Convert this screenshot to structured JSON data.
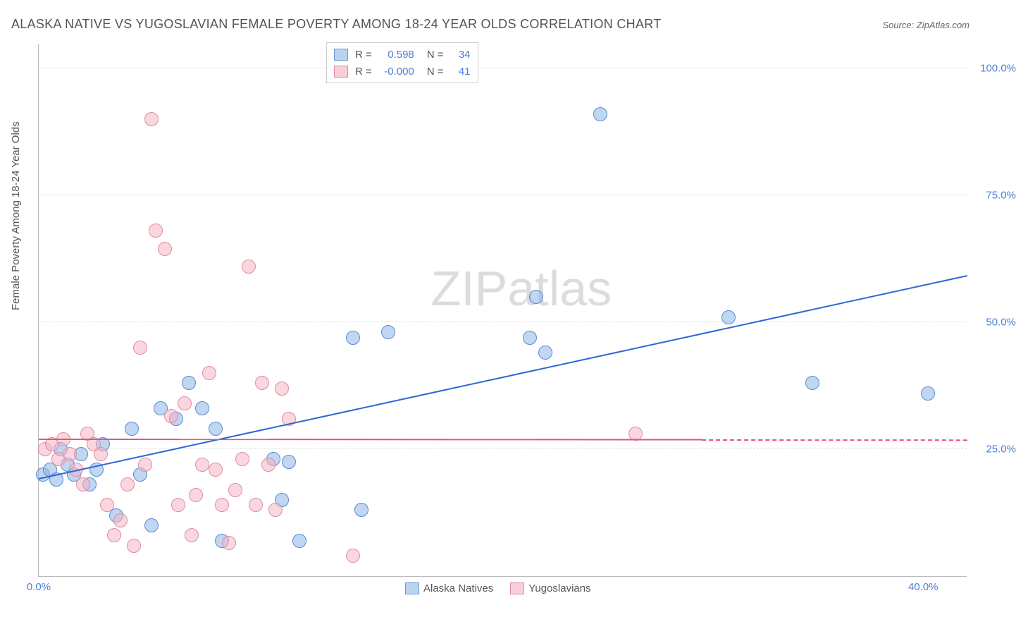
{
  "title": "ALASKA NATIVE VS YUGOSLAVIAN FEMALE POVERTY AMONG 18-24 YEAR OLDS CORRELATION CHART",
  "source_label": "Source: ZipAtlas.com",
  "y_axis_title": "Female Poverty Among 18-24 Year Olds",
  "watermark_parts": {
    "bold": "ZIP",
    "light": "atlas"
  },
  "stats": [
    {
      "r_label": "R =",
      "r_val": "0.598",
      "n_label": "N =",
      "n_val": "34",
      "color": "blue"
    },
    {
      "r_label": "R =",
      "r_val": "-0.000",
      "n_label": "N =",
      "n_val": "41",
      "color": "pink"
    }
  ],
  "legend": {
    "series_a": "Alaska Natives",
    "series_b": "Yugoslavians"
  },
  "chart": {
    "type": "scatter",
    "xlim": [
      0,
      42
    ],
    "ylim": [
      0,
      105
    ],
    "x_ticks": [
      {
        "v": 0,
        "label": "0.0%"
      },
      {
        "v": 40,
        "label": "40.0%"
      }
    ],
    "y_ticks": [
      {
        "v": 25,
        "label": "25.0%"
      },
      {
        "v": 50,
        "label": "50.0%"
      },
      {
        "v": 75,
        "label": "75.0%"
      },
      {
        "v": 100,
        "label": "100.0%"
      }
    ],
    "marker_radius": 10,
    "background_color": "#ffffff",
    "grid_color": "#dddddd",
    "series": [
      {
        "name": "Alaska Natives",
        "color": "blue",
        "fill": "rgba(140,180,230,0.55)",
        "stroke": "#5a8cd0",
        "points": [
          [
            0.2,
            20
          ],
          [
            0.5,
            21
          ],
          [
            0.8,
            19
          ],
          [
            1.0,
            25
          ],
          [
            1.3,
            22
          ],
          [
            1.6,
            20
          ],
          [
            1.9,
            24
          ],
          [
            2.3,
            18
          ],
          [
            2.6,
            21
          ],
          [
            2.9,
            26
          ],
          [
            3.5,
            12
          ],
          [
            4.2,
            29
          ],
          [
            4.6,
            20
          ],
          [
            5.1,
            10
          ],
          [
            5.5,
            33
          ],
          [
            6.2,
            31
          ],
          [
            6.8,
            38
          ],
          [
            7.4,
            33
          ],
          [
            8.0,
            29
          ],
          [
            8.3,
            7
          ],
          [
            10.6,
            23
          ],
          [
            11.0,
            15
          ],
          [
            11.3,
            22.5
          ],
          [
            11.8,
            7
          ],
          [
            14.2,
            47
          ],
          [
            14.6,
            13
          ],
          [
            15.8,
            48
          ],
          [
            22.2,
            47
          ],
          [
            22.5,
            55
          ],
          [
            22.9,
            44
          ],
          [
            25.4,
            91
          ],
          [
            31.2,
            51
          ],
          [
            35.0,
            38
          ],
          [
            40.2,
            36
          ]
        ],
        "trend": {
          "x1": 0,
          "y1": 19,
          "x2": 42,
          "y2": 59,
          "solid_until": 42,
          "color": "#2f67d1"
        }
      },
      {
        "name": "Yugoslavians",
        "color": "pink",
        "fill": "rgba(245,180,195,0.55)",
        "stroke": "#e28ba5",
        "points": [
          [
            0.3,
            25
          ],
          [
            0.6,
            26
          ],
          [
            0.9,
            23
          ],
          [
            1.1,
            27
          ],
          [
            1.4,
            24
          ],
          [
            1.7,
            21
          ],
          [
            2.0,
            18
          ],
          [
            2.2,
            28
          ],
          [
            2.5,
            26
          ],
          [
            2.8,
            24
          ],
          [
            3.1,
            14
          ],
          [
            3.4,
            8
          ],
          [
            3.7,
            11
          ],
          [
            4.0,
            18
          ],
          [
            4.3,
            6
          ],
          [
            4.6,
            45
          ],
          [
            4.8,
            22
          ],
          [
            5.1,
            90
          ],
          [
            5.3,
            68
          ],
          [
            5.7,
            64.5
          ],
          [
            6.0,
            31.5
          ],
          [
            6.3,
            14
          ],
          [
            6.6,
            34
          ],
          [
            6.9,
            8
          ],
          [
            7.1,
            16
          ],
          [
            7.4,
            22
          ],
          [
            7.7,
            40
          ],
          [
            8.0,
            21
          ],
          [
            8.3,
            14
          ],
          [
            8.6,
            6.5
          ],
          [
            8.9,
            17
          ],
          [
            9.2,
            23
          ],
          [
            9.5,
            61
          ],
          [
            9.8,
            14
          ],
          [
            10.1,
            38
          ],
          [
            10.4,
            22
          ],
          [
            10.7,
            13
          ],
          [
            11.0,
            37
          ],
          [
            11.3,
            31
          ],
          [
            14.2,
            4
          ],
          [
            27.0,
            28
          ]
        ],
        "trend": {
          "x1": 0,
          "y1": 26.8,
          "x2": 42,
          "y2": 26.7,
          "solid_until": 30,
          "color": "#e8517e"
        }
      }
    ]
  }
}
